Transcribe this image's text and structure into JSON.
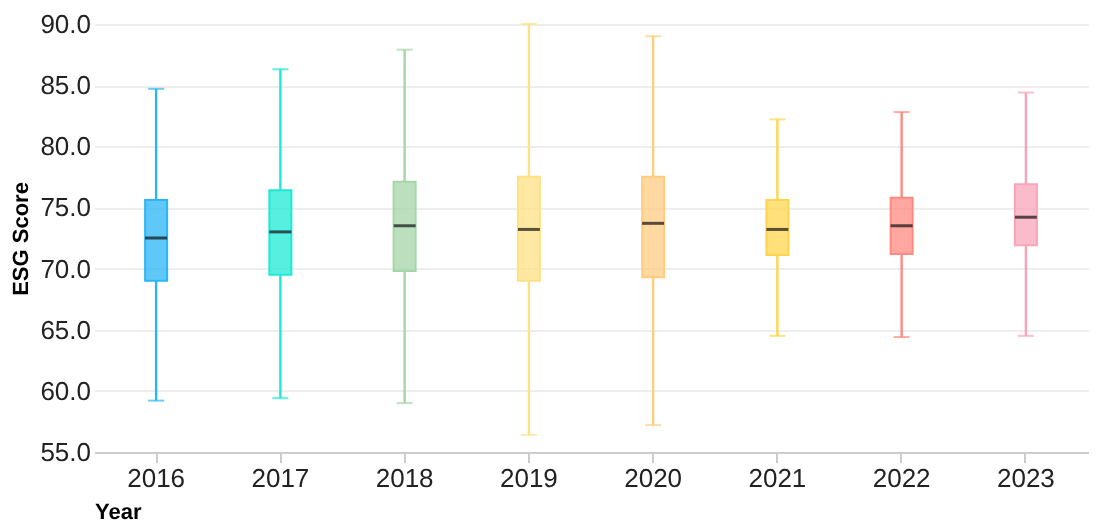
{
  "chart_data": {
    "type": "box",
    "xlabel": "Year",
    "ylabel": "ESG Score",
    "categories": [
      "2016",
      "2017",
      "2018",
      "2019",
      "2020",
      "2021",
      "2022",
      "2023"
    ],
    "colors": [
      "#29b6f6",
      "#1de9d6",
      "#a5d6a7",
      "#ffe082",
      "#ffcc80",
      "#ffd54f",
      "#ff8a80",
      "#f8a5b8"
    ],
    "boxes": [
      {
        "low": 59.2,
        "q1": 69.0,
        "median": 72.5,
        "q3": 75.6,
        "high": 84.7
      },
      {
        "low": 59.4,
        "q1": 69.5,
        "median": 73.0,
        "q3": 76.4,
        "high": 86.3
      },
      {
        "low": 59.0,
        "q1": 69.8,
        "median": 73.5,
        "q3": 77.1,
        "high": 87.9
      },
      {
        "low": 56.4,
        "q1": 69.0,
        "median": 73.2,
        "q3": 77.5,
        "high": 90.0
      },
      {
        "low": 57.2,
        "q1": 69.3,
        "median": 73.7,
        "q3": 77.5,
        "high": 89.0
      },
      {
        "low": 64.5,
        "q1": 71.1,
        "median": 73.2,
        "q3": 75.6,
        "high": 82.2
      },
      {
        "low": 64.4,
        "q1": 71.2,
        "median": 73.5,
        "q3": 75.8,
        "high": 82.8
      },
      {
        "low": 64.5,
        "q1": 71.9,
        "median": 74.2,
        "q3": 76.9,
        "high": 84.4
      }
    ],
    "ylim": [
      55,
      90
    ],
    "yticks": [
      {
        "value": 55,
        "label": "55.0"
      },
      {
        "value": 60,
        "label": "60.0"
      },
      {
        "value": 65,
        "label": "65.0"
      },
      {
        "value": 70,
        "label": "70.0"
      },
      {
        "value": 75,
        "label": "75.0"
      },
      {
        "value": 80,
        "label": "80.0"
      },
      {
        "value": 85,
        "label": "85.0"
      },
      {
        "value": 90,
        "label": "90.0"
      }
    ],
    "grid": "y"
  }
}
